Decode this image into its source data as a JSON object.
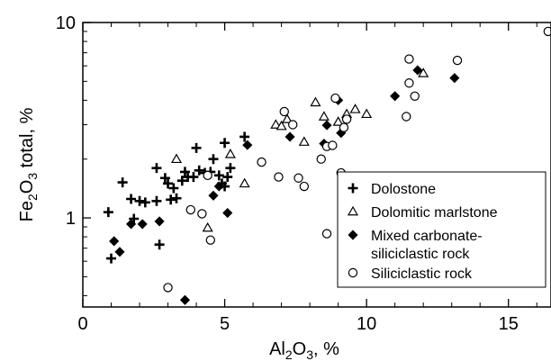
{
  "chart_data": {
    "type": "scatter",
    "xlabel": "Al2O3, %",
    "ylabel": "Fe2O3 total, %",
    "x_scale": "linear",
    "y_scale": "log",
    "xlim": [
      0,
      16.5
    ],
    "ylim": [
      0.35,
      10
    ],
    "x_ticks": [
      "0",
      "5",
      "10",
      "15"
    ],
    "y_ticks": [
      "1",
      "10"
    ],
    "grid": false,
    "legend_position": "bottom-right",
    "series": [
      {
        "name": "Dolostone",
        "marker": "plus",
        "points": [
          [
            0.9,
            1.07
          ],
          [
            1.0,
            0.62
          ],
          [
            1.4,
            1.52
          ],
          [
            1.7,
            1.25
          ],
          [
            1.8,
            0.99
          ],
          [
            2.0,
            1.22
          ],
          [
            2.2,
            1.2
          ],
          [
            2.6,
            1.8
          ],
          [
            2.6,
            1.22
          ],
          [
            2.7,
            0.73
          ],
          [
            2.9,
            1.6
          ],
          [
            3.0,
            1.5
          ],
          [
            3.1,
            1.24
          ],
          [
            3.2,
            1.42
          ],
          [
            3.3,
            1.26
          ],
          [
            3.5,
            1.55
          ],
          [
            3.6,
            1.72
          ],
          [
            3.7,
            1.62
          ],
          [
            3.9,
            1.62
          ],
          [
            4.0,
            2.28
          ],
          [
            4.1,
            1.75
          ],
          [
            4.3,
            1.7
          ],
          [
            4.5,
            1.72
          ],
          [
            4.6,
            2.0
          ],
          [
            4.8,
            1.65
          ],
          [
            4.9,
            1.5
          ],
          [
            5.0,
            1.45
          ],
          [
            5.0,
            2.42
          ],
          [
            5.1,
            1.62
          ],
          [
            5.2,
            1.8
          ],
          [
            5.7,
            2.6
          ]
        ]
      },
      {
        "name": "Dolomitic marlstone",
        "marker": "open-triangle",
        "points": [
          [
            3.3,
            2.0
          ],
          [
            4.4,
            0.89
          ],
          [
            5.2,
            2.12
          ],
          [
            5.7,
            1.5
          ],
          [
            6.8,
            3.0
          ],
          [
            7.0,
            2.95
          ],
          [
            7.2,
            3.2
          ],
          [
            7.8,
            2.45
          ],
          [
            8.2,
            3.9
          ],
          [
            8.5,
            3.3
          ],
          [
            9.0,
            3.1
          ],
          [
            9.3,
            3.4
          ],
          [
            9.6,
            3.6
          ],
          [
            10.0,
            3.4
          ],
          [
            12.0,
            5.5
          ]
        ]
      },
      {
        "name": "Mixed carbonate-siliciclastic rock",
        "marker": "filled-diamond",
        "points": [
          [
            1.1,
            0.76
          ],
          [
            1.3,
            0.67
          ],
          [
            1.7,
            0.93
          ],
          [
            2.1,
            0.93
          ],
          [
            2.7,
            0.96
          ],
          [
            3.6,
            0.38
          ],
          [
            4.6,
            1.3
          ],
          [
            4.8,
            1.45
          ],
          [
            5.1,
            1.06
          ],
          [
            5.8,
            2.36
          ],
          [
            7.3,
            2.6
          ],
          [
            8.5,
            2.4
          ],
          [
            8.6,
            2.98
          ],
          [
            9.1,
            2.72
          ],
          [
            9.0,
            4.0
          ],
          [
            11.0,
            4.2
          ],
          [
            11.8,
            5.7
          ],
          [
            13.1,
            5.2
          ]
        ]
      },
      {
        "name": "Siliciclastic rock",
        "marker": "open-circle",
        "points": [
          [
            3.0,
            0.44
          ],
          [
            3.8,
            1.1
          ],
          [
            4.2,
            1.05
          ],
          [
            4.4,
            1.65
          ],
          [
            4.5,
            0.77
          ],
          [
            6.3,
            1.93
          ],
          [
            6.9,
            1.62
          ],
          [
            7.1,
            3.5
          ],
          [
            7.4,
            3.0
          ],
          [
            7.6,
            1.6
          ],
          [
            7.8,
            1.45
          ],
          [
            8.4,
            2.0
          ],
          [
            8.6,
            2.32
          ],
          [
            8.6,
            0.83
          ],
          [
            8.8,
            2.35
          ],
          [
            8.9,
            4.1
          ],
          [
            9.1,
            1.7
          ],
          [
            9.2,
            2.9
          ],
          [
            9.3,
            3.2
          ],
          [
            11.4,
            3.3
          ],
          [
            11.5,
            6.5
          ],
          [
            11.5,
            4.9
          ],
          [
            11.7,
            4.2
          ],
          [
            13.2,
            6.4
          ],
          [
            16.4,
            9.0
          ]
        ]
      }
    ]
  }
}
